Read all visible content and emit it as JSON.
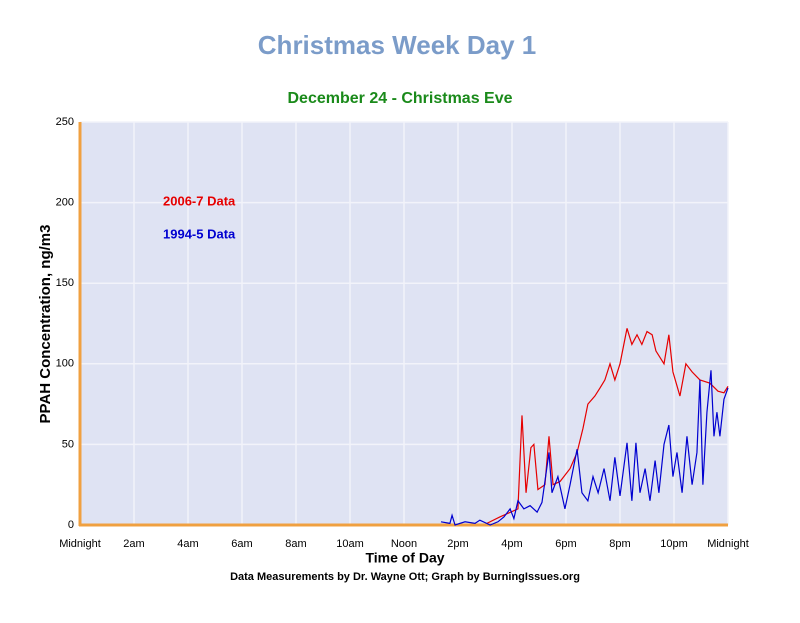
{
  "chart_data": {
    "type": "line",
    "title": "Christmas Week Day 1",
    "subtitle": "December 24 - Christmas Eve",
    "xlabel": "Time of Day",
    "ylabel": "PPAH Concentration, ng/m3",
    "note": "Data Measurements by Dr. Wayne Ott; Graph by BurningIssues.org",
    "xlim": [
      0,
      24
    ],
    "ylim": [
      0,
      250
    ],
    "xticks": [
      {
        "value": 0,
        "label": "Midnight"
      },
      {
        "value": 2,
        "label": "2am"
      },
      {
        "value": 4,
        "label": "4am"
      },
      {
        "value": 6,
        "label": "6am"
      },
      {
        "value": 8,
        "label": "8am"
      },
      {
        "value": 10,
        "label": "10am"
      },
      {
        "value": 12,
        "label": "Noon"
      },
      {
        "value": 14,
        "label": "2pm"
      },
      {
        "value": 16,
        "label": "4pm"
      },
      {
        "value": 18,
        "label": "6pm"
      },
      {
        "value": 20,
        "label": "8pm"
      },
      {
        "value": 22,
        "label": "10pm"
      },
      {
        "value": 24,
        "label": "Midnight"
      }
    ],
    "yticks": [
      0,
      50,
      100,
      150,
      200,
      250
    ],
    "grid": true,
    "legend": "upper-left",
    "series": [
      {
        "name": "2006-7 Data",
        "color": "#e60000",
        "x": [
          15.07,
          15.55,
          16.22,
          16.37,
          16.52,
          16.7,
          16.81,
          16.96,
          17.22,
          17.37,
          17.52,
          17.78,
          18.15,
          18.41,
          18.63,
          18.81,
          19.07,
          19.26,
          19.44,
          19.63,
          19.81,
          20,
          20.26,
          20.44,
          20.63,
          20.81,
          21,
          21.19,
          21.33,
          21.63,
          21.81,
          21.96,
          22.22,
          22.44,
          22.67,
          22.96,
          23.33,
          23.63,
          23.85,
          24
        ],
        "values": [
          1,
          5,
          10,
          68,
          20,
          48,
          50,
          22,
          25,
          55,
          25,
          27,
          35,
          45,
          60,
          75,
          80,
          85,
          90,
          100,
          90,
          100,
          122,
          112,
          118,
          112,
          120,
          118,
          108,
          100,
          118,
          95,
          80,
          100,
          95,
          90,
          88,
          83,
          82,
          86
        ]
      },
      {
        "name": "1994-5 Data",
        "color": "#0000d0",
        "x": [
          13.37,
          13.7,
          13.78,
          13.89,
          14.26,
          14.63,
          14.81,
          15.19,
          15.48,
          15.7,
          15.93,
          16.07,
          16.22,
          16.44,
          16.67,
          16.93,
          17.11,
          17.37,
          17.48,
          17.7,
          17.96,
          18.15,
          18.41,
          18.59,
          18.81,
          19,
          19.19,
          19.41,
          19.63,
          19.81,
          20,
          20.26,
          20.44,
          20.59,
          20.74,
          20.93,
          21.11,
          21.3,
          21.44,
          21.63,
          21.81,
          21.96,
          22.11,
          22.3,
          22.48,
          22.67,
          22.85,
          22.96,
          23.07,
          23.22,
          23.37,
          23.48,
          23.59,
          23.7,
          23.85,
          24
        ],
        "values": [
          2,
          1,
          6,
          0,
          2,
          1,
          3,
          0,
          2,
          5,
          10,
          4,
          15,
          10,
          12,
          8,
          14,
          45,
          20,
          30,
          10,
          25,
          47,
          20,
          15,
          30,
          20,
          35,
          15,
          42,
          18,
          51,
          15,
          51,
          20,
          35,
          15,
          40,
          20,
          50,
          62,
          30,
          45,
          20,
          55,
          25,
          45,
          90,
          25,
          70,
          96,
          55,
          70,
          55,
          78,
          85
        ]
      }
    ]
  }
}
